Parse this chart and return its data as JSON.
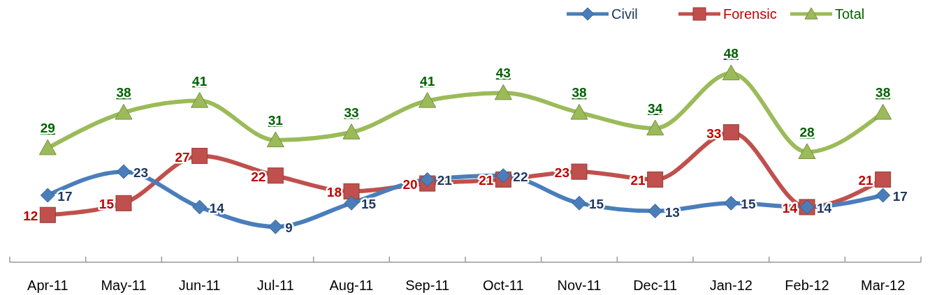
{
  "chart_data": {
    "type": "line",
    "categories": [
      "Apr-11",
      "May-11",
      "Jun-11",
      "Jul-11",
      "Aug-11",
      "Sep-11",
      "Oct-11",
      "Nov-11",
      "Dec-11",
      "Jan-12",
      "Feb-12",
      "Mar-12"
    ],
    "series": [
      {
        "name": "Civil",
        "color": "#4a7ebb",
        "marker": "diamond",
        "values": [
          17,
          23,
          14,
          9,
          15,
          21,
          22,
          15,
          13,
          15,
          14,
          17
        ]
      },
      {
        "name": "Forensic",
        "color": "#c0504d",
        "marker": "square",
        "values": [
          12,
          15,
          27,
          22,
          18,
          20,
          21,
          23,
          21,
          33,
          14,
          21
        ]
      },
      {
        "name": "Total",
        "color": "#9bbb59",
        "marker": "triangle",
        "values": [
          29,
          38,
          41,
          31,
          33,
          41,
          43,
          38,
          34,
          48,
          28,
          38
        ]
      }
    ],
    "data_labels": true,
    "legend": "top right",
    "line_style": "solid"
  }
}
